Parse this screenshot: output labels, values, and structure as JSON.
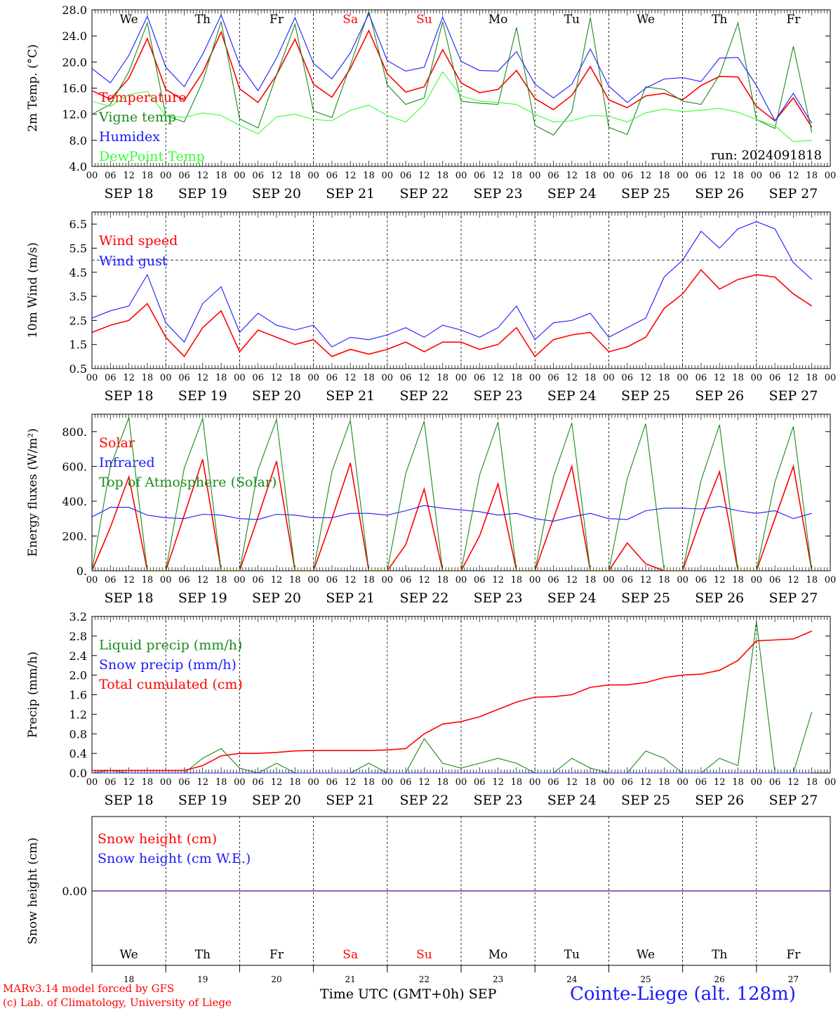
{
  "footer": {
    "model": "MARv3.14 model forced by GFS",
    "lab": "(c) Lab. of Climatology, University of Liege",
    "time_label": "Time UTC (GMT+0h) SEP",
    "location": "Cointe-Liege (alt. 128m)"
  },
  "colors": {
    "red": "#ff0000",
    "darkgreen": "#1a8a1a",
    "blue": "#1a1aff",
    "lightgreen": "#33ff33",
    "purple": "#7030a0"
  },
  "chart_data": [
    {
      "type": "line",
      "id": "temp",
      "ylabel": "2m Temp. (°C)",
      "ylim": [
        4,
        28
      ],
      "ytick_labels": [
        "4.0",
        "8.0",
        "12.0",
        "16.0",
        "20.0",
        "24.0",
        "28.0"
      ],
      "weekdays": [
        "We",
        "Th",
        "Fr",
        "Sa",
        "Su",
        "Mo",
        "Tu",
        "We",
        "Th",
        "Fr"
      ],
      "hour_labels": [
        "00",
        "06",
        "12",
        "18"
      ],
      "date_labels": [
        "SEP 18",
        "SEP 19",
        "SEP 20",
        "SEP 21",
        "SEP 22",
        "SEP 23",
        "SEP 24",
        "SEP 25",
        "SEP 26",
        "SEP 27"
      ],
      "hour_step": 6,
      "run_label": "run: 2024091818",
      "series": [
        {
          "name": "Temperature",
          "color": "red",
          "values": [
            15.6,
            14.3,
            17.5,
            23.6,
            15.8,
            14.1,
            18.4,
            24.6,
            15.9,
            13.8,
            18.0,
            23.5,
            16.6,
            14.6,
            19.0,
            24.8,
            18.2,
            15.4,
            16.2,
            21.9,
            16.8,
            15.3,
            15.8,
            18.7,
            14.4,
            12.7,
            14.9,
            19.3,
            14.2,
            13.0,
            14.8,
            15.2,
            14.2,
            16.4,
            17.8,
            17.7,
            13.2,
            11.0,
            14.5,
            10.0
          ]
        },
        {
          "name": "Vigne temp",
          "color": "darkgreen",
          "values": [
            12.0,
            13.5,
            18.5,
            26.0,
            11.8,
            10.8,
            17.0,
            26.2,
            11.3,
            9.9,
            18.0,
            25.8,
            12.5,
            11.5,
            19.5,
            27.8,
            16.5,
            13.5,
            14.5,
            26.2,
            14.0,
            13.7,
            13.5,
            25.3,
            10.3,
            8.8,
            12.4,
            26.8,
            10.0,
            8.9,
            16.2,
            15.8,
            14.0,
            13.5,
            18.0,
            26.0,
            11.2,
            9.8,
            22.4,
            9.2
          ]
        },
        {
          "name": "Humidex",
          "color": "blue",
          "values": [
            19.0,
            16.8,
            21.0,
            27.0,
            19.2,
            16.2,
            21.2,
            27.2,
            19.6,
            15.6,
            20.6,
            26.8,
            19.8,
            17.4,
            21.4,
            27.4,
            20.2,
            18.6,
            19.2,
            26.9,
            20.1,
            18.7,
            18.6,
            21.6,
            16.6,
            14.5,
            16.6,
            22.0,
            16.3,
            13.8,
            16.0,
            17.4,
            17.6,
            17.0,
            20.6,
            20.7,
            16.4,
            11.0,
            15.2,
            10.6
          ]
        },
        {
          "name": "DewPoint Temp",
          "color": "lightgreen",
          "values": [
            14.0,
            13.2,
            15.0,
            15.5,
            11.8,
            11.5,
            12.2,
            11.8,
            10.3,
            9.0,
            11.6,
            12.0,
            11.2,
            11.0,
            12.6,
            13.4,
            11.8,
            10.8,
            13.5,
            18.5,
            14.8,
            14.0,
            13.8,
            13.5,
            12.0,
            10.8,
            11.0,
            11.8,
            11.7,
            10.8,
            12.2,
            12.8,
            12.4,
            12.6,
            12.9,
            12.3,
            11.2,
            10.2,
            7.8,
            8.0
          ]
        }
      ]
    },
    {
      "type": "line",
      "id": "wind",
      "ylabel": "10m Wind (m/s)",
      "ylim": [
        0.5,
        7.0
      ],
      "ytick_labels": [
        "0.5",
        "1.5",
        "2.5",
        "3.5",
        "4.5",
        "5.5",
        "6.5"
      ],
      "hour_labels": [
        "00",
        "06",
        "12",
        "18"
      ],
      "date_labels": [
        "SEP 18",
        "SEP 19",
        "SEP 20",
        "SEP 21",
        "SEP 22",
        "SEP 23",
        "SEP 24",
        "SEP 25",
        "SEP 26",
        "SEP 27"
      ],
      "hour_step": 6,
      "reference_line": 5.0,
      "series": [
        {
          "name": "Wind speed",
          "color": "red",
          "values": [
            2.0,
            2.3,
            2.5,
            3.2,
            1.8,
            1.0,
            2.2,
            2.9,
            1.2,
            2.1,
            1.8,
            1.5,
            1.7,
            1.0,
            1.3,
            1.1,
            1.3,
            1.6,
            1.2,
            1.6,
            1.6,
            1.3,
            1.5,
            2.2,
            1.0,
            1.7,
            1.9,
            2.0,
            1.2,
            1.4,
            1.8,
            3.0,
            3.6,
            4.6,
            3.8,
            4.2,
            4.4,
            4.3,
            3.6,
            3.1
          ]
        },
        {
          "name": "Wind gust",
          "color": "blue",
          "values": [
            2.6,
            2.9,
            3.1,
            4.4,
            2.4,
            1.6,
            3.2,
            3.9,
            2.0,
            2.8,
            2.3,
            2.1,
            2.3,
            1.4,
            1.8,
            1.7,
            1.9,
            2.2,
            1.8,
            2.3,
            2.1,
            1.8,
            2.2,
            3.1,
            1.7,
            2.4,
            2.5,
            2.8,
            1.8,
            2.2,
            2.6,
            4.3,
            5.0,
            6.2,
            5.5,
            6.3,
            6.6,
            6.3,
            4.9,
            4.2
          ]
        }
      ]
    },
    {
      "type": "line",
      "id": "flux",
      "ylabel": "Energy fluxes (W/m²)",
      "ylim": [
        0,
        900
      ],
      "ytick_labels": [
        "0.",
        "200.",
        "400.",
        "600.",
        "800."
      ],
      "hour_labels": [
        "00",
        "06",
        "12",
        "18"
      ],
      "date_labels": [
        "SEP 18",
        "SEP 19",
        "SEP 20",
        "SEP 21",
        "SEP 22",
        "SEP 23",
        "SEP 24",
        "SEP 25",
        "SEP 26",
        "SEP 27"
      ],
      "hour_step": 6,
      "series": [
        {
          "name": "Solar",
          "color": "red",
          "values": [
            0,
            250,
            540,
            0,
            0,
            320,
            640,
            0,
            0,
            310,
            630,
            0,
            0,
            300,
            620,
            0,
            0,
            150,
            470,
            0,
            0,
            200,
            500,
            0,
            0,
            300,
            600,
            0,
            0,
            160,
            40,
            0,
            0,
            300,
            570,
            0,
            0,
            300,
            600,
            0
          ]
        },
        {
          "name": "Infrared",
          "color": "blue",
          "values": [
            310,
            365,
            365,
            320,
            305,
            300,
            325,
            320,
            300,
            295,
            325,
            320,
            305,
            305,
            330,
            330,
            320,
            345,
            375,
            360,
            350,
            340,
            320,
            330,
            300,
            285,
            310,
            330,
            300,
            295,
            345,
            360,
            360,
            355,
            370,
            345,
            330,
            345,
            300,
            330
          ]
        },
        {
          "name": "Top of Atmosphere (Solar)",
          "color": "darkgreen",
          "values": [
            0,
            600,
            880,
            0,
            0,
            590,
            875,
            0,
            0,
            580,
            870,
            0,
            0,
            570,
            865,
            0,
            0,
            560,
            860,
            0,
            0,
            550,
            855,
            0,
            0,
            540,
            850,
            0,
            0,
            530,
            845,
            0,
            0,
            520,
            840,
            0,
            0,
            510,
            830,
            0
          ]
        }
      ]
    },
    {
      "type": "line",
      "id": "precip",
      "ylabel": "Precip (mm/h)",
      "ylim": [
        0,
        3.2
      ],
      "ytick_labels": [
        "0.0",
        "0.4",
        "0.8",
        "1.2",
        "1.6",
        "2.0",
        "2.4",
        "2.8",
        "3.2"
      ],
      "hour_labels": [
        "00",
        "06",
        "12",
        "18"
      ],
      "date_labels": [
        "SEP 18",
        "SEP 19",
        "SEP 20",
        "SEP 21",
        "SEP 22",
        "SEP 23",
        "SEP 24",
        "SEP 25",
        "SEP 26",
        "SEP 27"
      ],
      "hour_step": 6,
      "series": [
        {
          "name": "Liquid precip (mm/h)",
          "color": "darkgreen",
          "values": [
            0,
            0.05,
            0,
            0,
            0,
            0,
            0.3,
            0.5,
            0.1,
            0,
            0.2,
            0,
            0,
            0,
            0,
            0.2,
            0,
            0,
            0.7,
            0.2,
            0.1,
            0.2,
            0.3,
            0.2,
            0,
            0,
            0.3,
            0.1,
            0,
            0,
            0.45,
            0.3,
            0,
            0,
            0.3,
            0.15,
            3.1,
            0,
            0,
            1.25
          ]
        },
        {
          "name": "Snow precip (mm/h)",
          "color": "blue",
          "values": [
            0,
            0,
            0,
            0,
            0,
            0,
            0,
            0,
            0,
            0,
            0,
            0,
            0,
            0,
            0,
            0,
            0,
            0,
            0,
            0,
            0,
            0,
            0,
            0,
            0,
            0,
            0,
            0,
            0,
            0,
            0,
            0,
            0,
            0,
            0,
            0,
            0,
            0,
            0,
            0
          ]
        },
        {
          "name": "Total cumulated (cm)",
          "color": "red",
          "values": [
            0.05,
            0.05,
            0.05,
            0.05,
            0.05,
            0.05,
            0.15,
            0.35,
            0.4,
            0.4,
            0.42,
            0.45,
            0.46,
            0.46,
            0.46,
            0.46,
            0.47,
            0.5,
            0.8,
            1.0,
            1.05,
            1.15,
            1.3,
            1.45,
            1.55,
            1.56,
            1.6,
            1.75,
            1.8,
            1.8,
            1.85,
            1.95,
            2.0,
            2.02,
            2.1,
            2.3,
            2.7,
            2.72,
            2.74,
            2.9
          ]
        }
      ]
    },
    {
      "type": "line",
      "id": "snow",
      "ylabel": "Snow height (cm)",
      "ylim": [
        -1,
        1
      ],
      "ytick_labels": [
        "0.00"
      ],
      "weekdays": [
        "We",
        "Th",
        "Fr",
        "Sa",
        "Su",
        "Mo",
        "Tu",
        "We",
        "Th",
        "Fr"
      ],
      "day_numbers": [
        "18",
        "19",
        "20",
        "21",
        "22",
        "23",
        "24",
        "25",
        "26",
        "27"
      ],
      "series": [
        {
          "name": "Snow height (cm)",
          "color": "red",
          "values": [
            0,
            0
          ]
        },
        {
          "name": "Snow height (cm W.E.)",
          "color": "blue",
          "values": [
            0,
            0
          ]
        }
      ]
    }
  ]
}
